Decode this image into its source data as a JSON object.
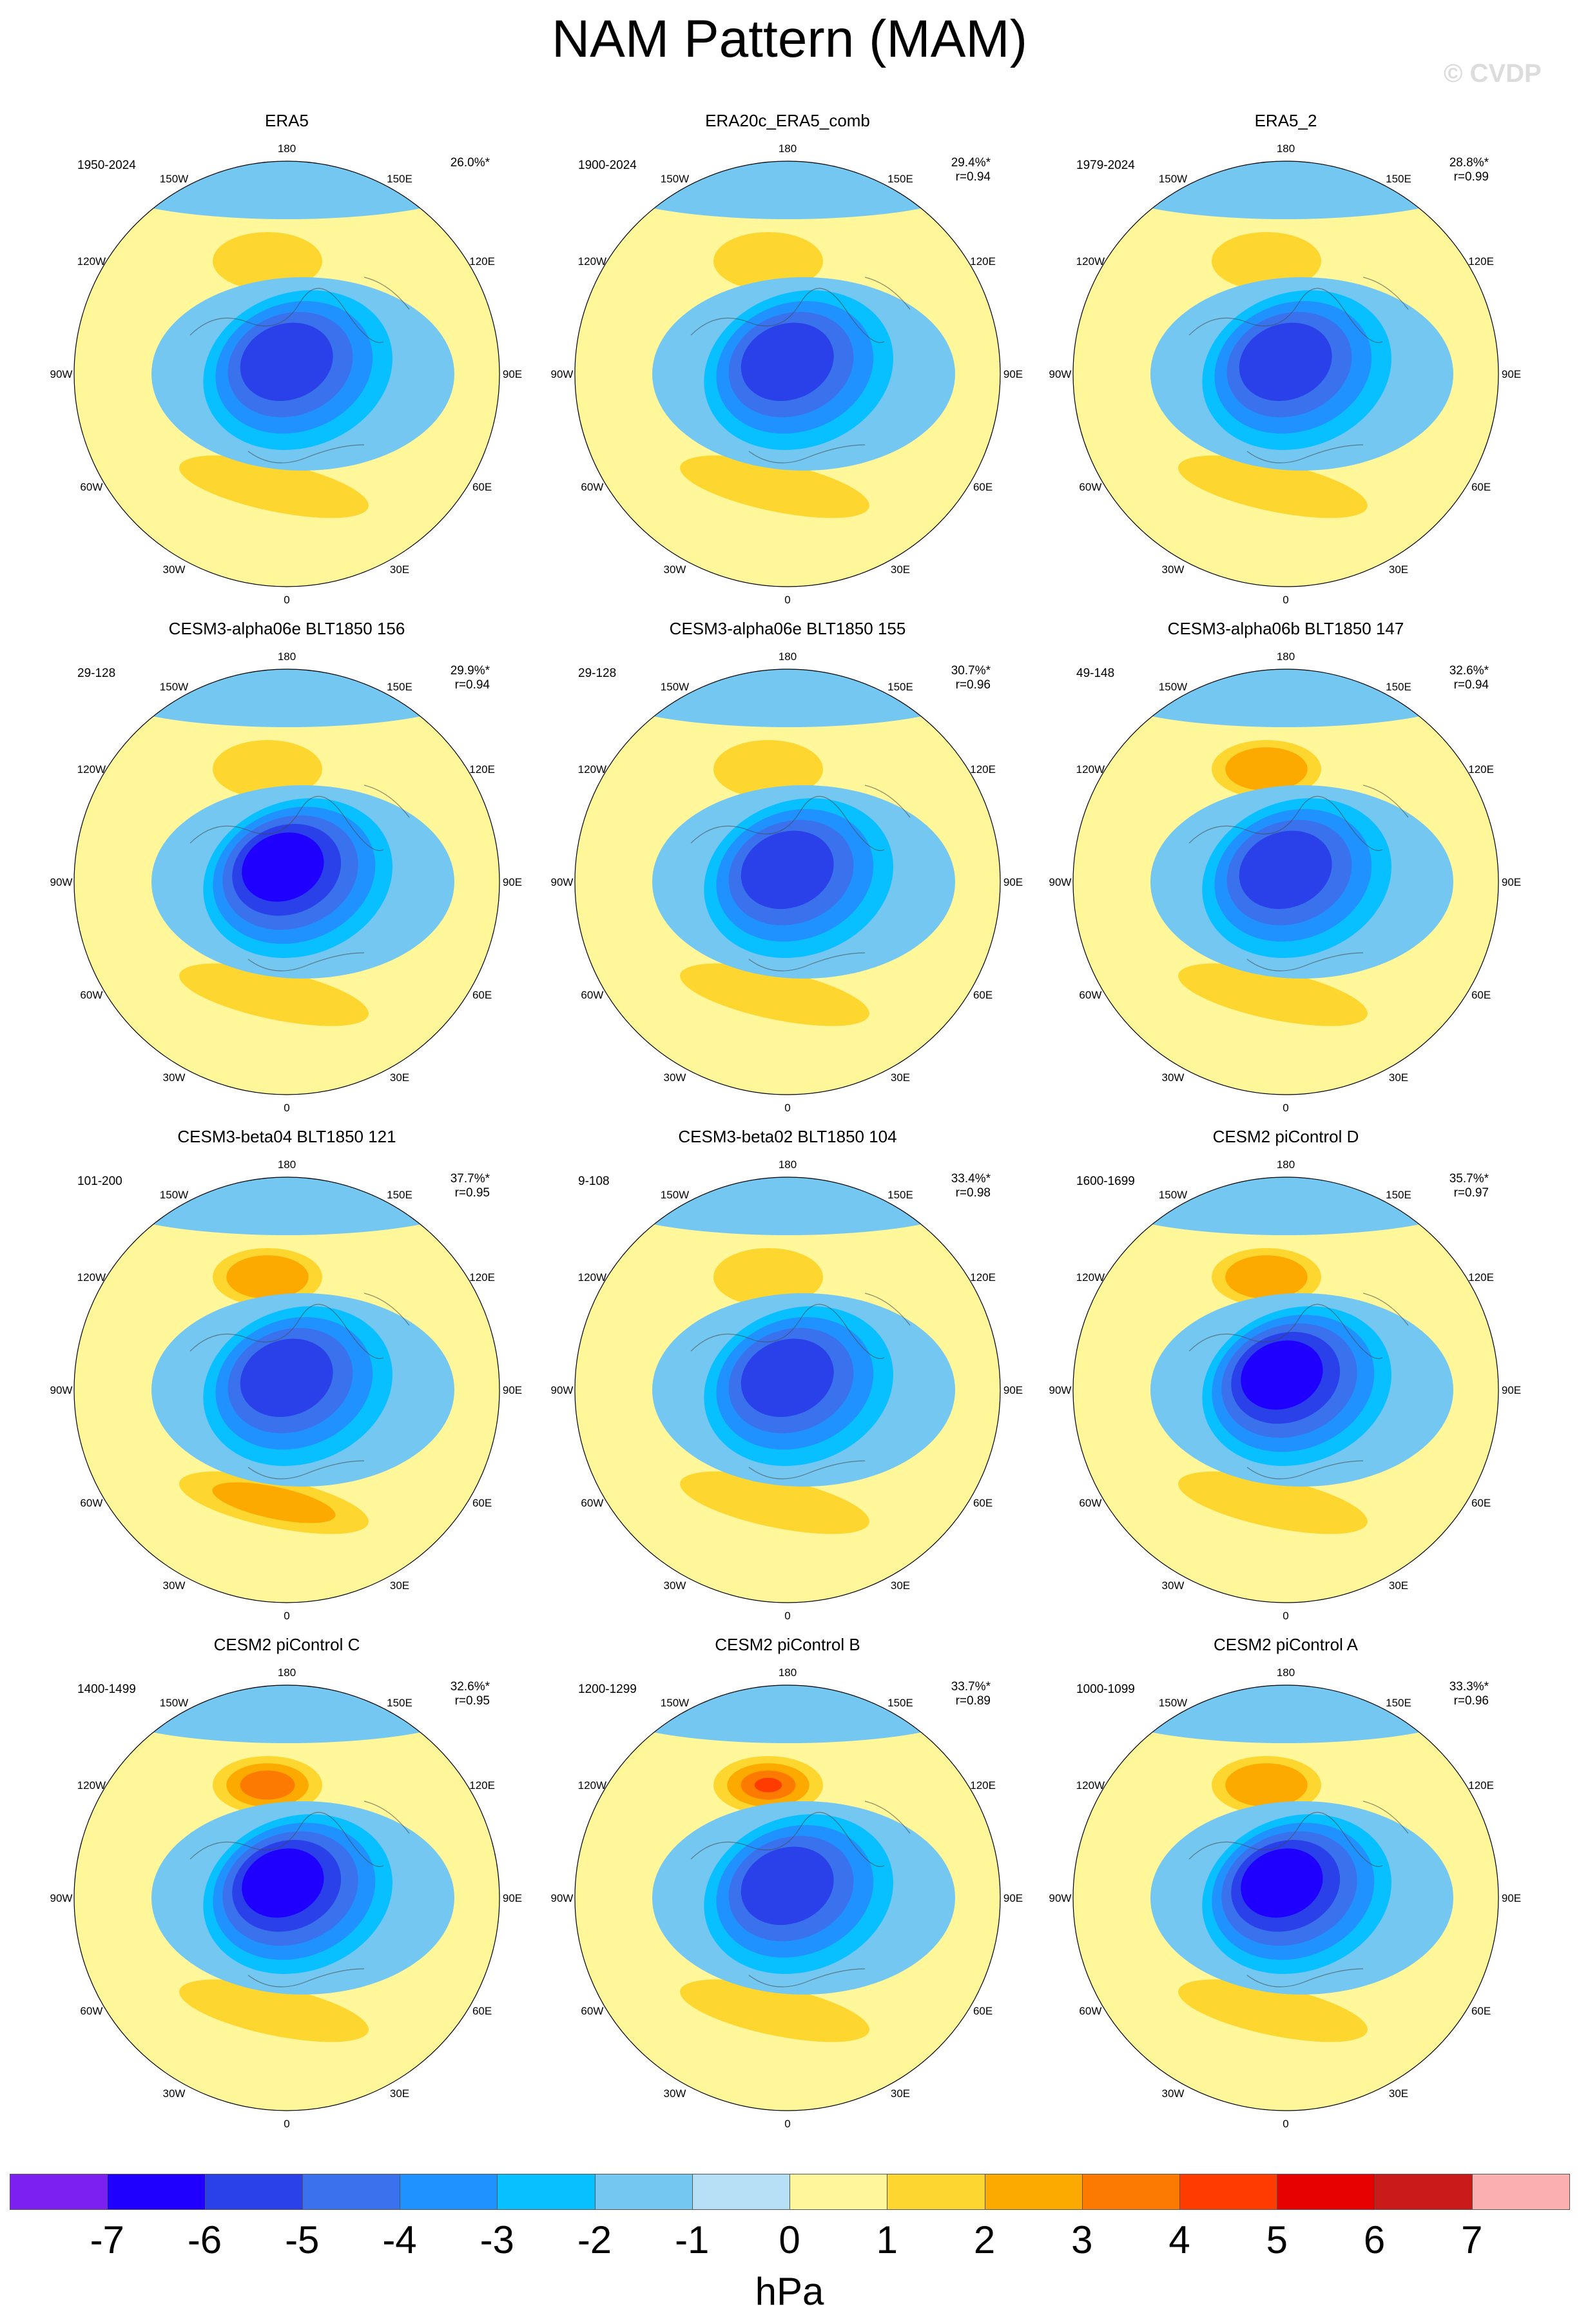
{
  "title": "NAM Pattern (MAM)",
  "credit": "© CVDP",
  "longitude_labels": [
    "180",
    "150E",
    "120E",
    "90E",
    "60E",
    "30E",
    "0",
    "30W",
    "60W",
    "90W",
    "120W",
    "150W"
  ],
  "panels": [
    {
      "name": "ERA5",
      "years": "1950-2024",
      "pct": "26.0%*",
      "r": "",
      "low_depth": 5,
      "pac_high": 1,
      "atl_high": 1,
      "low_shift": 0
    },
    {
      "name": "ERA20c_ERA5_comb",
      "years": "1900-2024",
      "pct": "29.4%*",
      "r": "r=0.94",
      "low_depth": 5,
      "pac_high": 1,
      "atl_high": 1,
      "low_shift": 0
    },
    {
      "name": "ERA5_2",
      "years": "1979-2024",
      "pct": "28.8%*",
      "r": "r=0.99",
      "low_depth": 5,
      "pac_high": 1,
      "atl_high": 1,
      "low_shift": 0
    },
    {
      "name": "CESM3-alpha06e BLT1850 156",
      "years": "29-128",
      "pct": "29.9%*",
      "r": "r=0.94",
      "low_depth": 6,
      "pac_high": 1,
      "atl_high": 1,
      "low_shift": 0
    },
    {
      "name": "CESM3-alpha06e BLT1850 155",
      "years": "29-128",
      "pct": "30.7%*",
      "r": "r=0.96",
      "low_depth": 5,
      "pac_high": 1,
      "atl_high": 1,
      "low_shift": 0
    },
    {
      "name": "CESM3-alpha06b BLT1850 147",
      "years": "49-148",
      "pct": "32.6%*",
      "r": "r=0.94",
      "low_depth": 5,
      "pac_high": 2,
      "atl_high": 1,
      "low_shift": 0
    },
    {
      "name": "CESM3-beta04 BLT1850 121",
      "years": "101-200",
      "pct": "37.7%*",
      "r": "r=0.95",
      "low_depth": 5,
      "pac_high": 2,
      "atl_high": 2,
      "low_shift": 0
    },
    {
      "name": "CESM3-beta02 BLT1850 104",
      "years": "9-108",
      "pct": "33.4%*",
      "r": "r=0.98",
      "low_depth": 5,
      "pac_high": 1,
      "atl_high": 1,
      "low_shift": 0
    },
    {
      "name": "CESM2 piControl D",
      "years": "1600-1699",
      "pct": "35.7%*",
      "r": "r=0.97",
      "low_depth": 6,
      "pac_high": 2,
      "atl_high": 1,
      "low_shift": 0
    },
    {
      "name": "CESM2 piControl C",
      "years": "1400-1499",
      "pct": "32.6%*",
      "r": "r=0.95",
      "low_depth": 6,
      "pac_high": 3,
      "atl_high": 1,
      "low_shift": 0
    },
    {
      "name": "CESM2 piControl B",
      "years": "1200-1299",
      "pct": "33.7%*",
      "r": "r=0.89",
      "low_depth": 5,
      "pac_high": 4,
      "atl_high": 1,
      "low_shift": 0
    },
    {
      "name": "CESM2 piControl A",
      "years": "1000-1099",
      "pct": "33.3%*",
      "r": "r=0.96",
      "low_depth": 6,
      "pac_high": 2,
      "atl_high": 1,
      "low_shift": 0
    }
  ],
  "colorbar": {
    "colors": [
      "#7b20f0",
      "#1f00ff",
      "#2a40e8",
      "#3a72ee",
      "#2092ff",
      "#08c0ff",
      "#74c7f0",
      "#b5dff4",
      "#fff79a",
      "#fdd630",
      "#fcaa00",
      "#fd7a00",
      "#fe3c00",
      "#e60000",
      "#c91a1a",
      "#fbb0b0"
    ],
    "labels": [
      "-7",
      "-6",
      "-5",
      "-4",
      "-3",
      "-2",
      "-1",
      "0",
      "1",
      "2",
      "3",
      "4",
      "5",
      "6",
      "7"
    ],
    "unit": "hPa"
  }
}
